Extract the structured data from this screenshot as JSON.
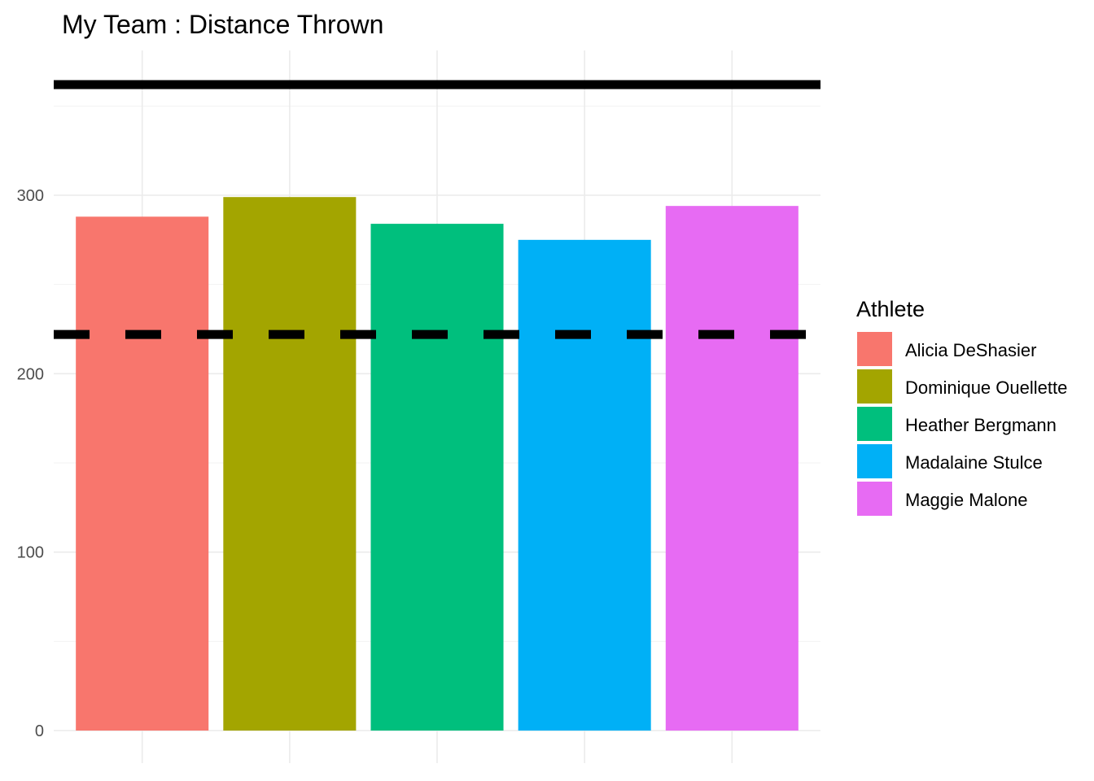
{
  "chart_data": {
    "type": "bar",
    "title": "My Team : Distance Thrown",
    "xlabel": "",
    "ylabel": "",
    "categories": [
      "Alicia DeShasier",
      "Dominique Ouellette",
      "Heather Bergmann",
      "Madalaine Stulce",
      "Maggie Malone"
    ],
    "values": [
      288,
      299,
      284,
      275,
      294
    ],
    "colors": [
      "#F8766D",
      "#A3A500",
      "#00BF7D",
      "#00B0F6",
      "#E76BF3"
    ],
    "ylim": [
      0,
      380
    ],
    "yticks": [
      0,
      100,
      200,
      300
    ],
    "grid": true,
    "reference_lines": [
      {
        "style": "solid",
        "value": 362
      },
      {
        "style": "dashed",
        "value": 222
      }
    ],
    "legend": {
      "title": "Athlete",
      "placement": "right",
      "entries": [
        "Alicia DeShasier",
        "Dominique Ouellette",
        "Heather Bergmann",
        "Madalaine Stulce",
        "Maggie Malone"
      ]
    }
  }
}
